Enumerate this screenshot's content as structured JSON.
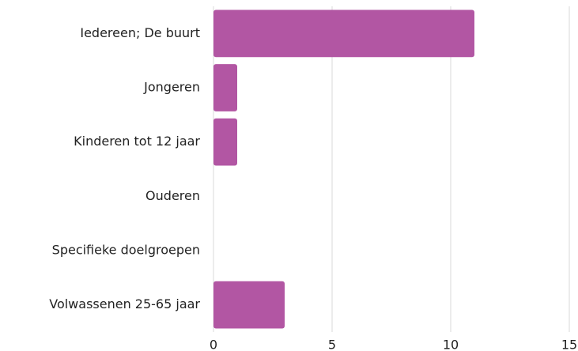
{
  "chart_data": {
    "type": "bar",
    "orientation": "horizontal",
    "categories": [
      "Iedereen; De buurt",
      "Jongeren",
      "Kinderen tot 12 jaar",
      "Ouderen",
      "Specifieke doelgroepen",
      "Volwassenen 25-65 jaar"
    ],
    "values": [
      11,
      1,
      1,
      0,
      0,
      3
    ],
    "color": "#b256a3",
    "xlim": [
      0,
      15
    ],
    "xticks": [
      0,
      5,
      10,
      15
    ],
    "grid": true
  }
}
